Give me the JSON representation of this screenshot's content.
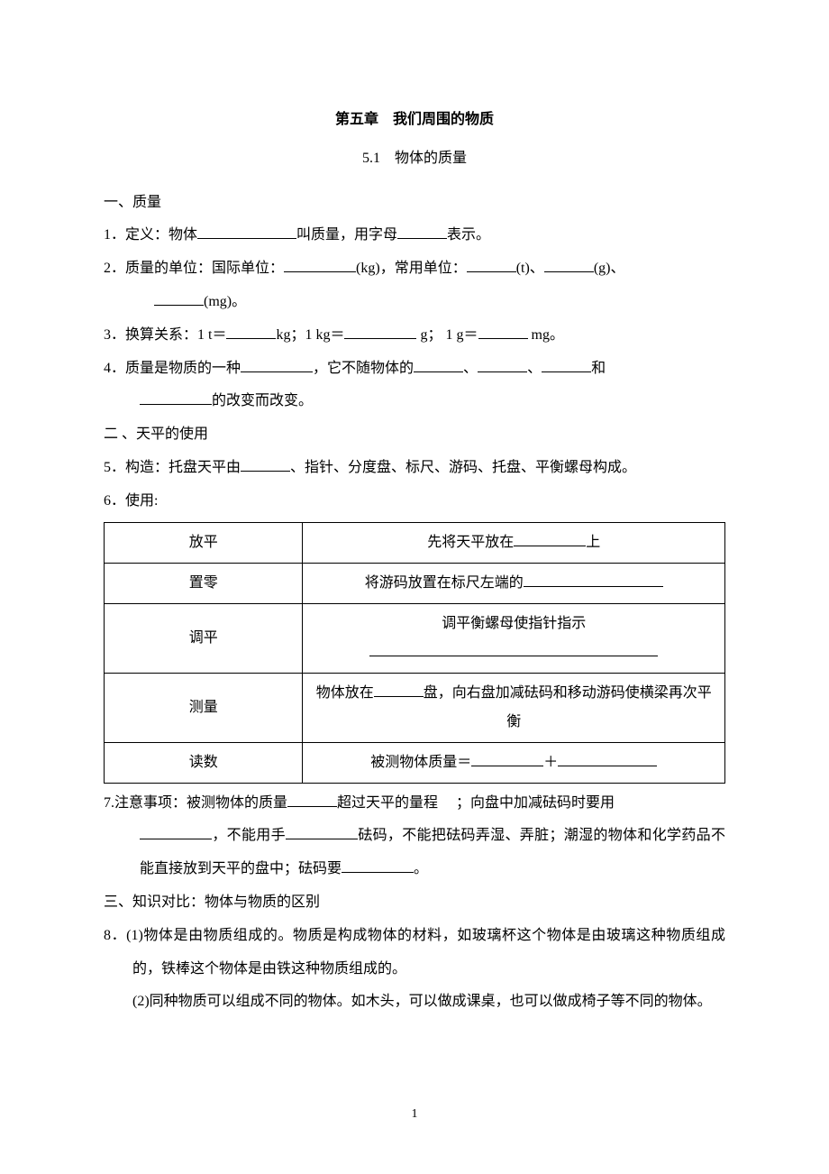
{
  "chapter": {
    "title": "第五章　我们周围的物质"
  },
  "section": {
    "title": "5.1　物体的质量"
  },
  "h1": {
    "label": "一、质量"
  },
  "p1": {
    "num": "1．",
    "t1": "定义：物体",
    "t2": "叫质量，用字母",
    "t3": "表示。"
  },
  "p2": {
    "num": "2．",
    "t1": "质量的单位：国际单位：",
    "t2": "(kg)，常用单位：",
    "t3": "(t)、",
    "t4": "(g)、",
    "t5": "(mg)。"
  },
  "p3": {
    "num": "3．",
    "t1": "换算关系：1 t＝",
    "t2": "kg；1 kg＝",
    "t3": " g； 1 g＝",
    "t4": " mg。"
  },
  "p4": {
    "num": "4．",
    "t1": "质量是物质的一种",
    "t2": "，它不随物体的",
    "t3": "、",
    "t4": "、",
    "t5": "和",
    "t6": "的改变而改变。"
  },
  "h2": {
    "label": "二 、天平的使用"
  },
  "p5": {
    "num": "5．",
    "t1": "构造：托盘天平由",
    "t2": "、指针、分度盘、标尺、游码、托盘、平衡螺母构成。"
  },
  "p6": {
    "num": "6．",
    "t1": "使用:"
  },
  "table": {
    "r1": {
      "c1": "放平",
      "c2a": "先将天平放在",
      "c2b": "上"
    },
    "r2": {
      "c1": "置零",
      "c2a": "将游码放置在标尺左端的"
    },
    "r3": {
      "c1": "调平",
      "c2a": "调平衡螺母使指针指示"
    },
    "r4": {
      "c1": "测量",
      "c2a": "物体放在",
      "c2b": "盘，向右盘加减砝码和移动游码使横梁再次平衡"
    },
    "r5": {
      "c1": "读数",
      "c2a": "被测物体质量＝",
      "c2b": "＋"
    }
  },
  "p7": {
    "num": "7.",
    "t1": "注意事项：被测物体的质量",
    "t2": "超过天平的量程",
    "t3": "；向盘中加减砝码时要用",
    "t4": "，不能用手",
    "t5": "砝码，不能把砝码弄湿、弄脏；潮湿的物体和化学药品不能直接放到天平的盘中；砝码要",
    "t6": "。"
  },
  "h3": {
    "label": "三、知识对比：物体与物质的区别"
  },
  "p8": {
    "num": "8．",
    "a": "(1)物体是由物质组成的。物质是构成物体的材料，如玻璃杯这个物体是由玻璃这种物质组成的，铁棒这个物体是由铁这种物质组成的。",
    "b": "(2)同种物质可以组成不同的物体。如木头，可以做成课桌，也可以做成椅子等不同的物体。"
  },
  "footer": {
    "page": "1"
  }
}
